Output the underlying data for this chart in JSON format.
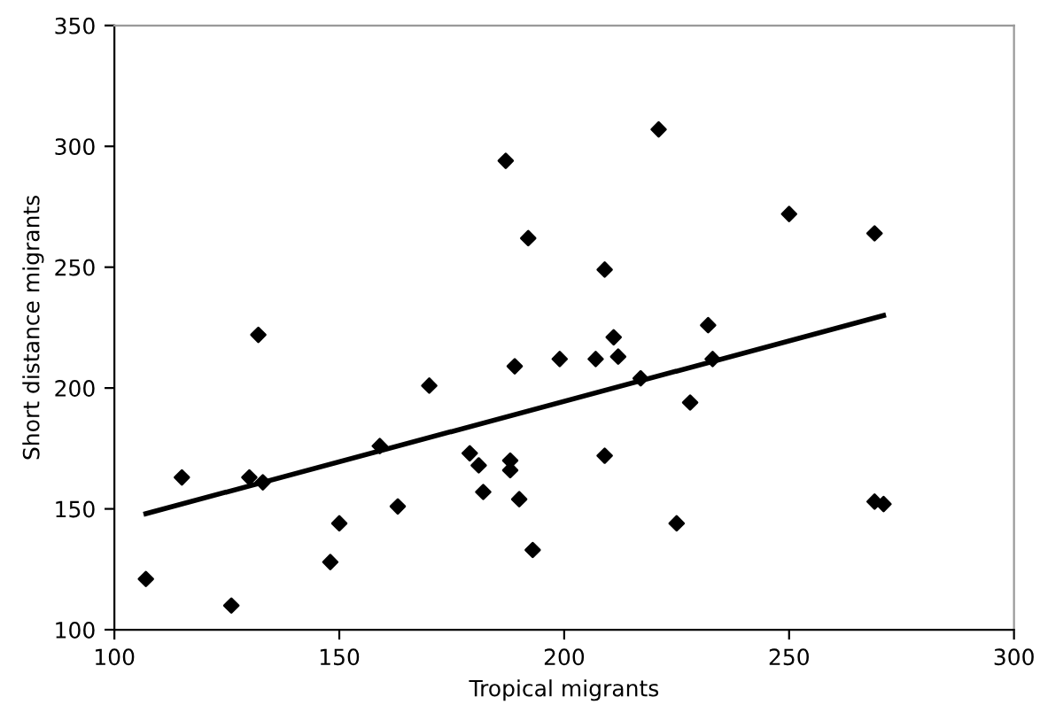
{
  "chart_data": {
    "type": "scatter",
    "xlabel": "Tropical migrants",
    "ylabel": "Short distance migrants",
    "xlim": [
      100,
      300
    ],
    "ylim": [
      100,
      350
    ],
    "xticks": [
      100,
      150,
      200,
      250,
      300
    ],
    "yticks": [
      100,
      150,
      200,
      250,
      300,
      350
    ],
    "grid": false,
    "legend": false,
    "marker": "diamond",
    "series": [
      {
        "color": "#000000",
        "x": [
          107,
          115,
          126,
          132,
          130,
          133,
          148,
          150,
          159,
          163,
          170,
          187,
          192,
          209,
          211,
          212,
          207,
          199,
          189,
          217,
          228,
          179,
          181,
          188,
          188,
          182,
          190,
          193,
          209,
          225,
          221,
          232,
          233,
          250,
          269,
          269,
          271
        ],
        "values": [
          121,
          163,
          110,
          222,
          163,
          161,
          128,
          144,
          176,
          151,
          201,
          294,
          262,
          249,
          221,
          213,
          212,
          212,
          209,
          204,
          194,
          173,
          168,
          170,
          166,
          157,
          154,
          133,
          172,
          144,
          307,
          226,
          212,
          272,
          264,
          153,
          152
        ]
      },
      {
        "type": "line",
        "color": "#000000",
        "marker": "none",
        "x": [
          107,
          271
        ],
        "values": [
          148,
          230
        ]
      }
    ]
  }
}
